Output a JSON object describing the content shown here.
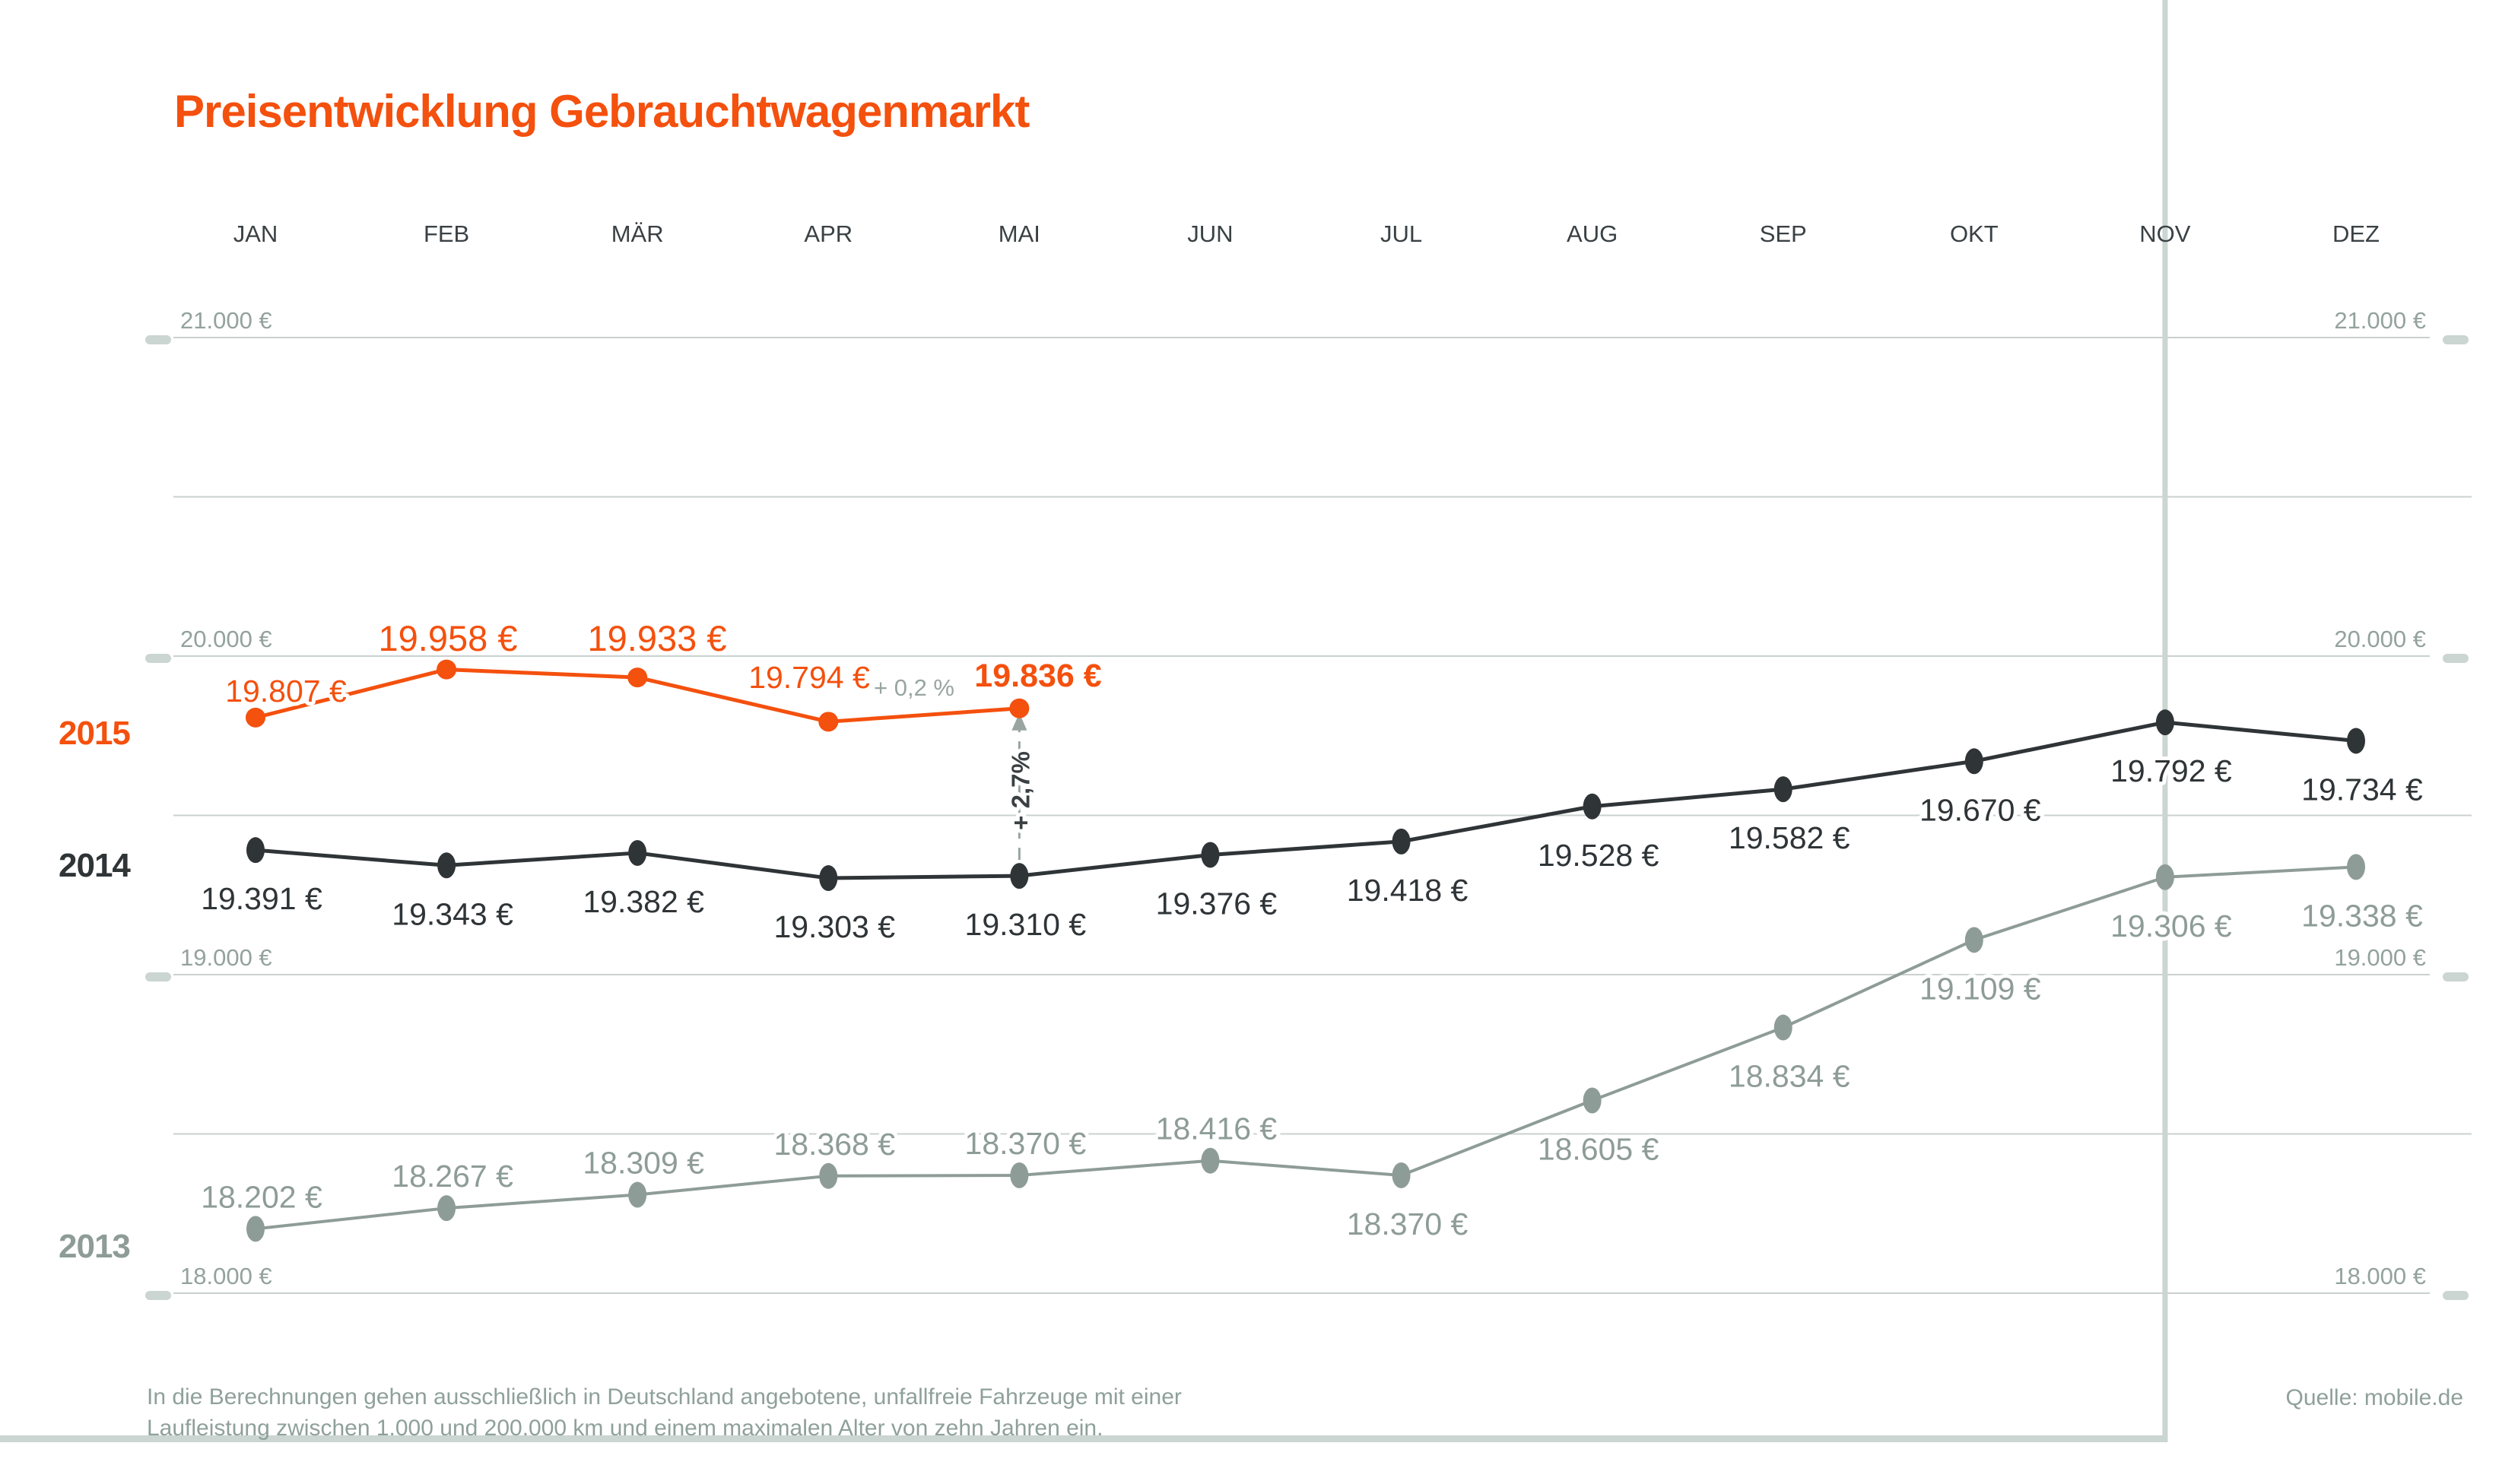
{
  "page": {
    "title": "Preisentwicklung Gebrauchtwagenmarkt",
    "footnote_line1": "In die Berechnungen gehen ausschließlich in Deutschland angebotene, unfallfreie Fahrzeuge mit einer",
    "footnote_line2": "Laufleistung zwischen 1.000 und 200.000 km und einem maximalen Alter von zehn Jahren ein.",
    "source": "Quelle: mobile.de"
  },
  "colors": {
    "accent_orange": "#F4500E",
    "series_2014": "#2F3437",
    "series_2013": "#8E9C98",
    "axis_text": "#93A29E",
    "gridline": "#C9D1CF",
    "highlight_rule": "#CBD5D1",
    "month_text": "#3A4144",
    "annotation_gray": "#98A5A1",
    "annotation_dark": "#3A4042"
  },
  "chart_data": {
    "type": "line",
    "title": "Preisentwicklung Gebrauchtwagenmarkt",
    "x_axis_position": "top",
    "categories": [
      "JAN",
      "FEB",
      "MÄR",
      "APR",
      "MAI",
      "JUN",
      "JUL",
      "AUG",
      "SEP",
      "OKT",
      "NOV",
      "DEZ"
    ],
    "ylabel": "",
    "ylim": [
      18000,
      21500
    ],
    "grid": true,
    "y_axis": {
      "unit": "€",
      "major_ticks": [
        {
          "value": 21000,
          "label": "21.000 €"
        },
        {
          "value": 20000,
          "label": "20.000 €"
        },
        {
          "value": 19000,
          "label": "19.000 €"
        },
        {
          "value": 18000,
          "label": "18.000 €"
        }
      ],
      "minor_gridlines": [
        20500,
        19500,
        18500
      ],
      "labels_on_both_sides": true
    },
    "highlighted_month": "NOV",
    "series": [
      {
        "name": "2015",
        "color": "#F4500E",
        "values": [
          19807,
          19958,
          19933,
          19794,
          19836
        ],
        "labels": [
          "19.807 €",
          "19.958 €",
          "19.933 €",
          "19.794 €",
          "19.836 €"
        ],
        "label_side": "above"
      },
      {
        "name": "2014",
        "color": "#2F3437",
        "values": [
          19391,
          19343,
          19382,
          19303,
          19310,
          19376,
          19418,
          19528,
          19582,
          19670,
          19792,
          19734
        ],
        "labels": [
          "19.391 €",
          "19.343 €",
          "19.382 €",
          "19.303 €",
          "19.310 €",
          "19.376 €",
          "19.418 €",
          "19.528 €",
          "19.582 €",
          "19.670 €",
          "19.792 €",
          "19.734 €"
        ],
        "label_side": "below"
      },
      {
        "name": "2013",
        "color": "#8E9C98",
        "values": [
          18202,
          18267,
          18309,
          18368,
          18370,
          18416,
          18370,
          18605,
          18834,
          19109,
          19306,
          19338
        ],
        "labels": [
          "18.202 €",
          "18.267 €",
          "18.309 €",
          "18.368 €",
          "18.370 €",
          "18.416 €",
          "18.370 €",
          "18.605 €",
          "18.834 €",
          "19.109 €",
          "19.306 €",
          "19.338 €"
        ],
        "label_sides": [
          "above",
          "above",
          "above",
          "above",
          "above",
          "above",
          "below",
          "below",
          "below",
          "below",
          "below",
          "below"
        ]
      }
    ],
    "annotations": {
      "month_over_month_change": "+ 0,2 %",
      "year_over_year_change": "+ 2,7%",
      "yoy_arrow": "2014-MAI to 2015-MAI, pointing up"
    },
    "legend_position": "left, year labels beside each line"
  }
}
